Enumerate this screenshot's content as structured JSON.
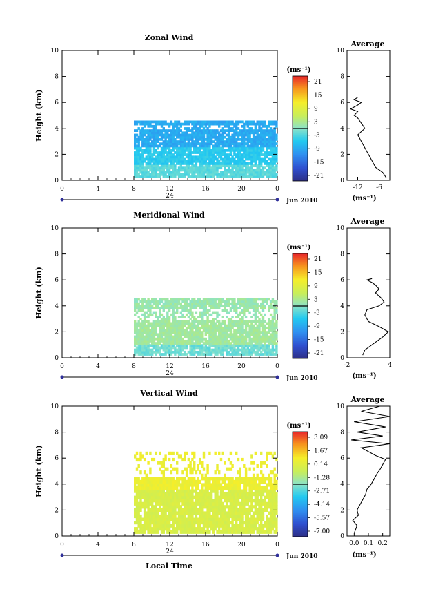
{
  "x_tick_labels": [
    "0",
    "4",
    "8",
    "12",
    "16",
    "20",
    "0"
  ],
  "day_label": "24",
  "date_label": "Jun 2010",
  "xlabel": "Local Time",
  "panels": [
    {
      "id": "zonal",
      "title": "Zonal Wind",
      "ylabel": "Height (km)",
      "y_ticks": [
        "0",
        "2",
        "4",
        "6",
        "8",
        "10"
      ],
      "colorbar_unit": "(ms⁻¹)",
      "colorbar_ticks": [
        "21",
        "15",
        "9",
        "3",
        "-3",
        "-9",
        "-15",
        "-21"
      ],
      "avg_title": "Average",
      "avg_unit": "(ms⁻¹)",
      "avg_x_ticks": [
        "-12",
        "-6"
      ],
      "avg_y_ticks": [
        "0",
        "2",
        "4",
        "6",
        "8",
        "10"
      ]
    },
    {
      "id": "meridional",
      "title": "Meridional Wind",
      "ylabel": "Height (km)",
      "y_ticks": [
        "0",
        "2",
        "4",
        "6",
        "8",
        "10"
      ],
      "colorbar_unit": "(ms⁻¹)",
      "colorbar_ticks": [
        "21",
        "15",
        "9",
        "3",
        "-3",
        "-9",
        "-15",
        "-21"
      ],
      "avg_title": "Average",
      "avg_unit": "(ms⁻¹)",
      "avg_x_ticks": [
        "-2",
        "4"
      ],
      "avg_y_ticks": [
        "0",
        "2",
        "4",
        "6",
        "8",
        "10"
      ]
    },
    {
      "id": "vertical",
      "title": "Vertical Wind",
      "ylabel": "Height (km)",
      "y_ticks": [
        "0",
        "2",
        "4",
        "6",
        "8",
        "10"
      ],
      "colorbar_unit": "(ms⁻¹)",
      "colorbar_ticks": [
        "3.09",
        "1.67",
        "0.14",
        "-1.28",
        "-2.71",
        "-4.14",
        "-5.57",
        "-7.00"
      ],
      "avg_title": "Average",
      "avg_unit": "(ms⁻¹)",
      "avg_x_ticks": [
        "0.0",
        "0.1",
        "0.2"
      ],
      "avg_y_ticks": [
        "0",
        "2",
        "4",
        "6",
        "8",
        "10"
      ]
    }
  ],
  "chart_data": [
    {
      "type": "heatmap",
      "title": "Zonal Wind",
      "xlabel": "",
      "ylabel": "Height (km)",
      "xlim": [
        0,
        24
      ],
      "ylim": [
        0,
        10
      ],
      "data_extent_x": [
        8,
        24
      ],
      "data_extent_y": [
        0.2,
        4.6
      ],
      "colorbar": {
        "unit": "ms-1",
        "range": [
          -21,
          21
        ]
      },
      "dominant_values": "mostly -3 to -15 ms-1 (light to medium blue)"
    },
    {
      "type": "line",
      "title": "Average",
      "xlabel": "(ms-1)",
      "ylabel": "",
      "xlim": [
        -15,
        -3
      ],
      "ylim": [
        0,
        10
      ],
      "series": [
        {
          "x": [
            -4,
            -5,
            -7,
            -8,
            -9,
            -10,
            -11,
            -12,
            -10,
            -11,
            -12,
            -13,
            -12,
            -14,
            -12,
            -11,
            -13,
            -12
          ],
          "y": [
            0.2,
            0.6,
            1.0,
            1.5,
            2.0,
            2.5,
            3.0,
            3.5,
            4.0,
            4.4,
            4.8,
            5.0,
            5.3,
            5.5,
            5.8,
            6.0,
            6.2,
            6.4
          ]
        }
      ]
    },
    {
      "type": "heatmap",
      "title": "Meridional Wind",
      "xlabel": "",
      "ylabel": "Height (km)",
      "xlim": [
        0,
        24
      ],
      "ylim": [
        0,
        10
      ],
      "data_extent_x": [
        8,
        24
      ],
      "data_extent_y": [
        0.2,
        4.6
      ],
      "colorbar": {
        "unit": "ms-1",
        "range": [
          -21,
          21
        ]
      },
      "dominant_values": "mostly 0 to 6 ms-1 (cyan to light green)"
    },
    {
      "type": "line",
      "title": "Average",
      "xlabel": "(ms-1)",
      "ylabel": "",
      "xlim": [
        -2,
        4
      ],
      "ylim": [
        0,
        10
      ],
      "series": [
        {
          "x": [
            0.2,
            0.5,
            1.5,
            3.0,
            3.8,
            2.5,
            1.0,
            0.5,
            0.8,
            2.5,
            3.2,
            2.8,
            2.0,
            2.5,
            2.0,
            1.5,
            0.8,
            1.5
          ],
          "y": [
            0.2,
            0.6,
            1.0,
            1.6,
            2.0,
            2.4,
            2.8,
            3.3,
            3.7,
            4.0,
            4.3,
            4.6,
            5.0,
            5.3,
            5.6,
            5.8,
            6.0,
            6.1
          ]
        }
      ]
    },
    {
      "type": "heatmap",
      "title": "Vertical Wind",
      "xlabel": "Local Time",
      "ylabel": "Height (km)",
      "xlim": [
        0,
        24
      ],
      "ylim": [
        0,
        10
      ],
      "data_extent_x": [
        8,
        24
      ],
      "data_extent_y": [
        0.2,
        6.5
      ],
      "colorbar": {
        "unit": "ms-1",
        "range": [
          -7.0,
          3.09
        ]
      },
      "dominant_values": "mostly 0.5 to 2.5 ms-1 (yellow-green to yellow)"
    },
    {
      "type": "line",
      "title": "Average",
      "xlabel": "(ms-1)",
      "ylabel": "",
      "xlim": [
        -0.05,
        0.25
      ],
      "ylim": [
        0,
        10
      ],
      "series": [
        {
          "x": [
            0.0,
            0.02,
            -0.01,
            0.03,
            0.02,
            0.05,
            0.08,
            0.09,
            0.12,
            0.14,
            0.16,
            0.18,
            0.2,
            0.22,
            0.15,
            0.05,
            0.25,
            -0.02,
            0.2,
            0.02,
            0.22,
            0.0,
            0.25,
            0.05,
            0.18
          ],
          "y": [
            0.2,
            0.8,
            1.2,
            1.6,
            2.0,
            2.6,
            3.2,
            3.6,
            4.0,
            4.4,
            4.8,
            5.1,
            5.5,
            5.9,
            6.2,
            6.8,
            7.1,
            7.4,
            7.7,
            8.0,
            8.4,
            8.8,
            9.2,
            9.6,
            10.0
          ]
        }
      ]
    }
  ]
}
